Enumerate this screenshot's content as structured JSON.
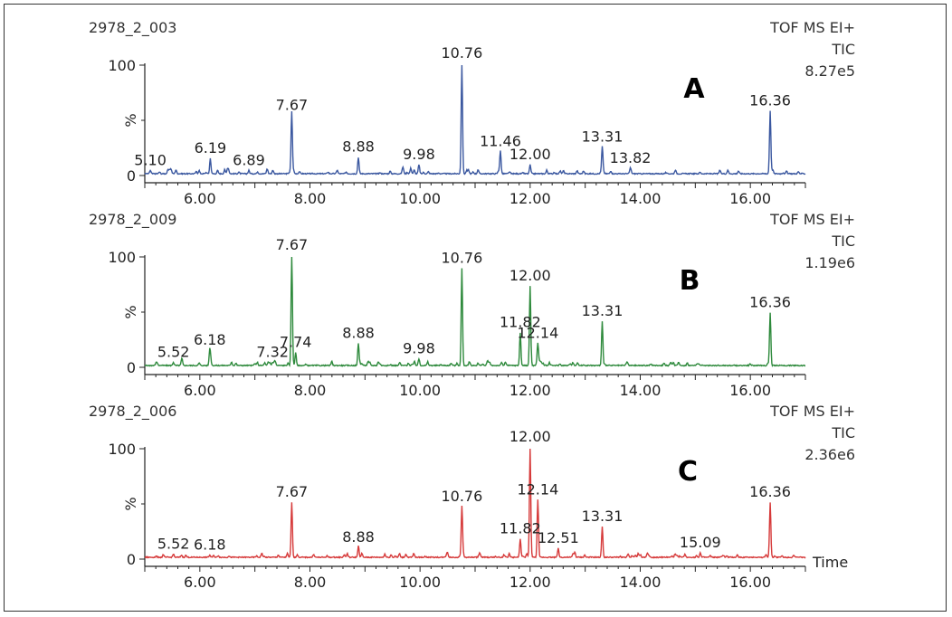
{
  "chart_data": [
    {
      "type": "line",
      "sample": "2978_2_003",
      "detector": "TOF MS EI+",
      "trace": "TIC",
      "intensity": "8.27e5",
      "letter": "A",
      "color": "#3b58a0",
      "xlim": [
        5.0,
        17.0
      ],
      "ylim": [
        0,
        100
      ],
      "ylabel": "%",
      "yticks": [
        "0",
        "100"
      ],
      "xticks": [
        "6.00",
        "8.00",
        "10.00",
        "12.00",
        "14.00",
        "16.00"
      ],
      "peaks": [
        {
          "rt": 5.1,
          "height": 3,
          "label": "5.10"
        },
        {
          "rt": 6.19,
          "height": 14,
          "label": "6.19"
        },
        {
          "rt": 6.89,
          "height": 3,
          "label": "6.89"
        },
        {
          "rt": 7.67,
          "height": 53,
          "label": "7.67"
        },
        {
          "rt": 8.88,
          "height": 15,
          "label": "8.88"
        },
        {
          "rt": 9.98,
          "height": 8,
          "label": "9.98"
        },
        {
          "rt": 10.76,
          "height": 100,
          "label": "10.76"
        },
        {
          "rt": 11.46,
          "height": 20,
          "label": "11.46"
        },
        {
          "rt": 12.0,
          "height": 8,
          "label": "12.00"
        },
        {
          "rt": 13.31,
          "height": 24,
          "label": "13.31"
        },
        {
          "rt": 13.82,
          "height": 5,
          "label": "13.82"
        },
        {
          "rt": 16.36,
          "height": 57,
          "label": "16.36"
        }
      ]
    },
    {
      "type": "line",
      "sample": "2978_2_009",
      "detector": "TOF MS EI+",
      "trace": "TIC",
      "intensity": "1.19e6",
      "letter": "B",
      "color": "#2e8a3c",
      "xlim": [
        5.0,
        17.0
      ],
      "ylim": [
        0,
        100
      ],
      "ylabel": "%",
      "yticks": [
        "0",
        "100"
      ],
      "xticks": [
        "6.00",
        "8.00",
        "10.00",
        "12.00",
        "14.00",
        "16.00"
      ],
      "peaks": [
        {
          "rt": 5.52,
          "height": 3,
          "label": "5.52"
        },
        {
          "rt": 6.18,
          "height": 14,
          "label": "6.18"
        },
        {
          "rt": 7.32,
          "height": 3,
          "label": "7.32"
        },
        {
          "rt": 7.67,
          "height": 100,
          "label": "7.67"
        },
        {
          "rt": 7.74,
          "height": 12,
          "label": "7.74"
        },
        {
          "rt": 8.88,
          "height": 20,
          "label": "8.88"
        },
        {
          "rt": 9.98,
          "height": 6,
          "label": "9.98"
        },
        {
          "rt": 10.76,
          "height": 88,
          "label": "10.76"
        },
        {
          "rt": 11.82,
          "height": 30,
          "label": "11.82"
        },
        {
          "rt": 12.0,
          "height": 72,
          "label": "12.00"
        },
        {
          "rt": 12.14,
          "height": 20,
          "label": "12.14"
        },
        {
          "rt": 13.31,
          "height": 40,
          "label": "13.31"
        },
        {
          "rt": 16.36,
          "height": 48,
          "label": "16.36"
        }
      ]
    },
    {
      "type": "line",
      "sample": "2978_2_006",
      "detector": "TOF MS EI+",
      "trace": "TIC",
      "intensity": "2.36e6",
      "letter": "C",
      "color": "#d63a3a",
      "xlim": [
        5.0,
        17.0
      ],
      "ylim": [
        0,
        100
      ],
      "ylabel": "%",
      "xlabel": "Time",
      "yticks": [
        "0",
        "100"
      ],
      "xticks": [
        "6.00",
        "8.00",
        "10.00",
        "12.00",
        "14.00",
        "16.00"
      ],
      "peaks": [
        {
          "rt": 5.52,
          "height": 3,
          "label": "5.52"
        },
        {
          "rt": 6.18,
          "height": 2,
          "label": "6.18"
        },
        {
          "rt": 7.67,
          "height": 50,
          "label": "7.67"
        },
        {
          "rt": 8.88,
          "height": 9,
          "label": "8.88"
        },
        {
          "rt": 10.76,
          "height": 46,
          "label": "10.76"
        },
        {
          "rt": 11.82,
          "height": 17,
          "label": "11.82"
        },
        {
          "rt": 12.0,
          "height": 100,
          "label": "12.00"
        },
        {
          "rt": 12.14,
          "height": 52,
          "label": "12.14"
        },
        {
          "rt": 12.51,
          "height": 8,
          "label": "12.51"
        },
        {
          "rt": 13.31,
          "height": 28,
          "label": "13.31"
        },
        {
          "rt": 15.09,
          "height": 4,
          "label": "15.09"
        },
        {
          "rt": 16.36,
          "height": 50,
          "label": "16.36"
        }
      ]
    }
  ]
}
